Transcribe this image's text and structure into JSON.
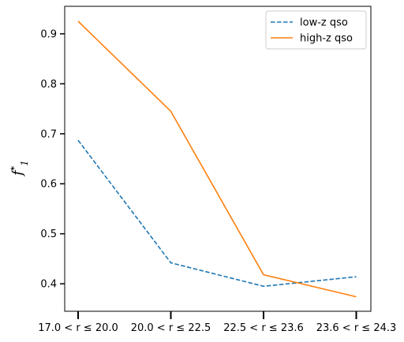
{
  "chart_data": {
    "type": "line",
    "categories": [
      "17.0 < r ≤ 20.0",
      "20.0 < r ≤ 22.5",
      "22.5 < r ≤ 23.6",
      "23.6 < r ≤ 24.3"
    ],
    "series": [
      {
        "name": "low-z qso",
        "values": [
          0.687,
          0.442,
          0.395,
          0.414
        ],
        "color": "#1f77b4",
        "style": "dashed"
      },
      {
        "name": "high-z qso",
        "values": [
          0.925,
          0.745,
          0.418,
          0.374
        ],
        "color": "#ff7f0e",
        "style": "solid"
      }
    ],
    "ylabel_main": "f",
    "ylabel_sup": "*",
    "ylabel_sub": "1",
    "ylim": [
      0.345,
      0.955
    ],
    "yticks": [
      "0.4",
      "0.5",
      "0.6",
      "0.7",
      "0.8",
      "0.9"
    ],
    "legend_position": "top-right",
    "grid": false
  }
}
